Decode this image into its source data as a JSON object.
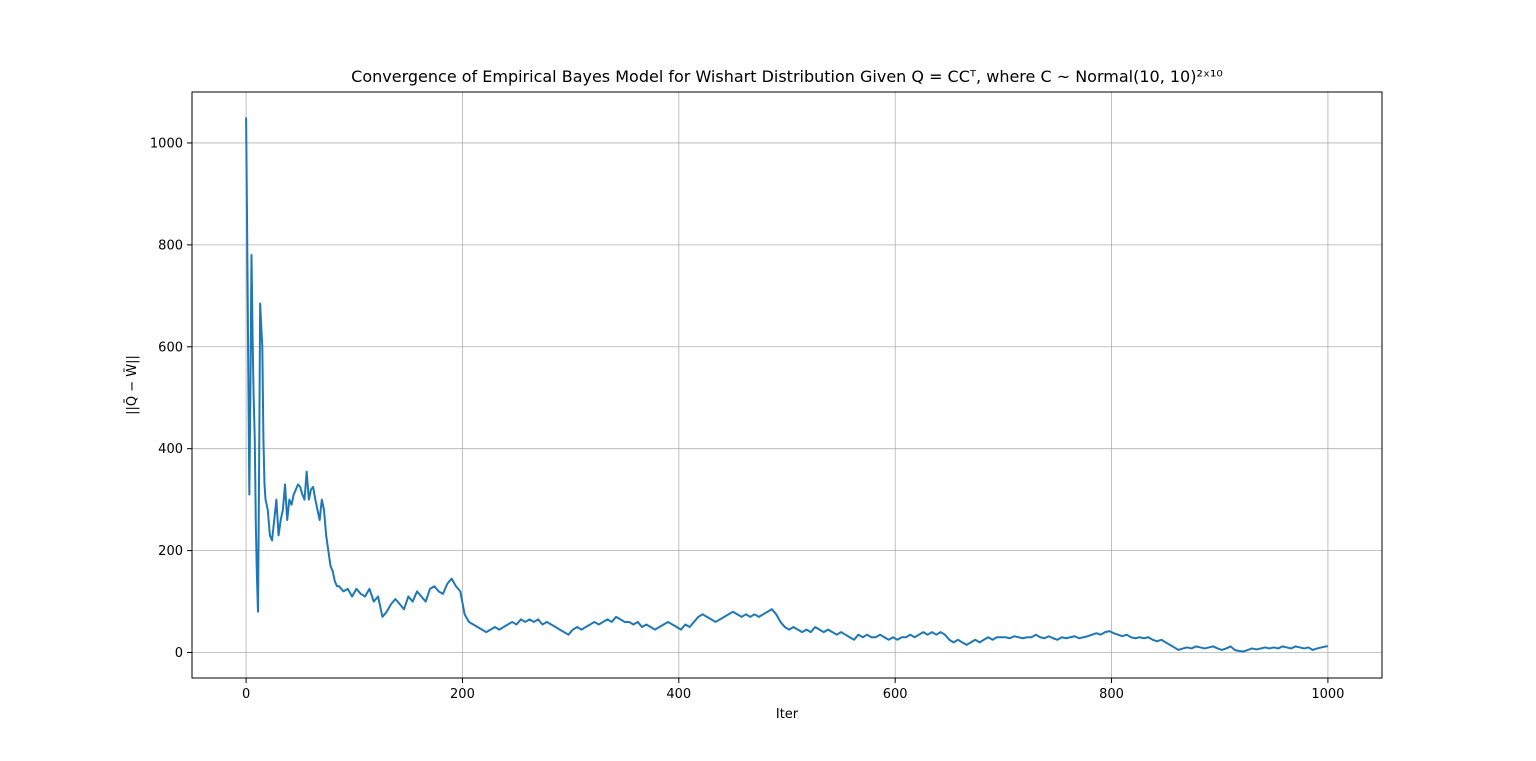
{
  "chart_data": {
    "type": "line",
    "title": "Convergence of Empirical Bayes Model for Wishart Distribution Given Q = CCᵀ, where C ~ Normal(10, 10)²ˣ¹⁰",
    "xlabel": "Iter",
    "ylabel": "||Q̄ − W̄||",
    "xlim": [
      -50,
      1050
    ],
    "ylim": [
      -50,
      1100
    ],
    "x_ticks": [
      0,
      200,
      400,
      600,
      800,
      1000
    ],
    "y_ticks": [
      0,
      200,
      400,
      600,
      800,
      1000
    ],
    "grid": true,
    "line_color": "#1f77b4",
    "series": [
      {
        "points": [
          [
            0,
            1050
          ],
          [
            1,
            820
          ],
          [
            2,
            560
          ],
          [
            3,
            310
          ],
          [
            4,
            520
          ],
          [
            5,
            780
          ],
          [
            6,
            620
          ],
          [
            7,
            500
          ],
          [
            8,
            420
          ],
          [
            9,
            250
          ],
          [
            10,
            150
          ],
          [
            11,
            80
          ],
          [
            12,
            350
          ],
          [
            13,
            685
          ],
          [
            14,
            640
          ],
          [
            15,
            600
          ],
          [
            16,
            420
          ],
          [
            17,
            330
          ],
          [
            18,
            300
          ],
          [
            20,
            280
          ],
          [
            22,
            230
          ],
          [
            24,
            220
          ],
          [
            26,
            260
          ],
          [
            28,
            300
          ],
          [
            30,
            230
          ],
          [
            32,
            260
          ],
          [
            34,
            280
          ],
          [
            36,
            330
          ],
          [
            38,
            260
          ],
          [
            40,
            300
          ],
          [
            42,
            290
          ],
          [
            44,
            310
          ],
          [
            46,
            320
          ],
          [
            48,
            330
          ],
          [
            50,
            325
          ],
          [
            52,
            310
          ],
          [
            54,
            300
          ],
          [
            56,
            355
          ],
          [
            58,
            300
          ],
          [
            60,
            320
          ],
          [
            62,
            325
          ],
          [
            64,
            300
          ],
          [
            66,
            280
          ],
          [
            68,
            260
          ],
          [
            70,
            300
          ],
          [
            72,
            280
          ],
          [
            74,
            230
          ],
          [
            76,
            200
          ],
          [
            78,
            170
          ],
          [
            80,
            160
          ],
          [
            82,
            140
          ],
          [
            84,
            130
          ],
          [
            86,
            130
          ],
          [
            90,
            120
          ],
          [
            94,
            125
          ],
          [
            98,
            110
          ],
          [
            102,
            125
          ],
          [
            106,
            115
          ],
          [
            110,
            110
          ],
          [
            114,
            125
          ],
          [
            118,
            100
          ],
          [
            122,
            110
          ],
          [
            126,
            70
          ],
          [
            130,
            80
          ],
          [
            134,
            95
          ],
          [
            138,
            105
          ],
          [
            142,
            95
          ],
          [
            146,
            85
          ],
          [
            150,
            110
          ],
          [
            154,
            100
          ],
          [
            158,
            120
          ],
          [
            162,
            110
          ],
          [
            166,
            100
          ],
          [
            170,
            125
          ],
          [
            174,
            130
          ],
          [
            178,
            120
          ],
          [
            182,
            115
          ],
          [
            186,
            135
          ],
          [
            190,
            145
          ],
          [
            194,
            130
          ],
          [
            198,
            120
          ],
          [
            202,
            75
          ],
          [
            206,
            60
          ],
          [
            210,
            55
          ],
          [
            214,
            50
          ],
          [
            218,
            45
          ],
          [
            222,
            40
          ],
          [
            226,
            45
          ],
          [
            230,
            50
          ],
          [
            234,
            45
          ],
          [
            238,
            50
          ],
          [
            242,
            55
          ],
          [
            246,
            60
          ],
          [
            250,
            55
          ],
          [
            254,
            65
          ],
          [
            258,
            60
          ],
          [
            262,
            65
          ],
          [
            266,
            60
          ],
          [
            270,
            65
          ],
          [
            274,
            55
          ],
          [
            278,
            60
          ],
          [
            282,
            55
          ],
          [
            286,
            50
          ],
          [
            290,
            45
          ],
          [
            294,
            40
          ],
          [
            298,
            35
          ],
          [
            302,
            45
          ],
          [
            306,
            50
          ],
          [
            310,
            45
          ],
          [
            314,
            50
          ],
          [
            318,
            55
          ],
          [
            322,
            60
          ],
          [
            326,
            55
          ],
          [
            330,
            60
          ],
          [
            334,
            65
          ],
          [
            338,
            60
          ],
          [
            342,
            70
          ],
          [
            346,
            65
          ],
          [
            350,
            60
          ],
          [
            354,
            60
          ],
          [
            358,
            55
          ],
          [
            362,
            60
          ],
          [
            366,
            50
          ],
          [
            370,
            55
          ],
          [
            374,
            50
          ],
          [
            378,
            45
          ],
          [
            382,
            50
          ],
          [
            386,
            55
          ],
          [
            390,
            60
          ],
          [
            394,
            55
          ],
          [
            398,
            50
          ],
          [
            402,
            45
          ],
          [
            406,
            55
          ],
          [
            410,
            50
          ],
          [
            414,
            60
          ],
          [
            418,
            70
          ],
          [
            422,
            75
          ],
          [
            426,
            70
          ],
          [
            430,
            65
          ],
          [
            434,
            60
          ],
          [
            438,
            65
          ],
          [
            442,
            70
          ],
          [
            446,
            75
          ],
          [
            450,
            80
          ],
          [
            454,
            75
          ],
          [
            458,
            70
          ],
          [
            462,
            75
          ],
          [
            466,
            70
          ],
          [
            470,
            75
          ],
          [
            474,
            70
          ],
          [
            478,
            75
          ],
          [
            482,
            80
          ],
          [
            486,
            85
          ],
          [
            490,
            75
          ],
          [
            494,
            60
          ],
          [
            498,
            50
          ],
          [
            502,
            45
          ],
          [
            506,
            50
          ],
          [
            510,
            45
          ],
          [
            514,
            40
          ],
          [
            518,
            45
          ],
          [
            522,
            40
          ],
          [
            526,
            50
          ],
          [
            530,
            45
          ],
          [
            534,
            40
          ],
          [
            538,
            45
          ],
          [
            542,
            40
          ],
          [
            546,
            35
          ],
          [
            550,
            40
          ],
          [
            554,
            35
          ],
          [
            558,
            30
          ],
          [
            562,
            25
          ],
          [
            566,
            35
          ],
          [
            570,
            30
          ],
          [
            574,
            35
          ],
          [
            578,
            30
          ],
          [
            582,
            30
          ],
          [
            586,
            35
          ],
          [
            590,
            30
          ],
          [
            594,
            25
          ],
          [
            598,
            30
          ],
          [
            602,
            25
          ],
          [
            606,
            30
          ],
          [
            610,
            30
          ],
          [
            614,
            35
          ],
          [
            618,
            30
          ],
          [
            622,
            35
          ],
          [
            626,
            40
          ],
          [
            630,
            35
          ],
          [
            634,
            40
          ],
          [
            638,
            35
          ],
          [
            642,
            40
          ],
          [
            646,
            35
          ],
          [
            650,
            25
          ],
          [
            654,
            20
          ],
          [
            658,
            25
          ],
          [
            662,
            20
          ],
          [
            666,
            15
          ],
          [
            670,
            20
          ],
          [
            674,
            25
          ],
          [
            678,
            20
          ],
          [
            682,
            25
          ],
          [
            686,
            30
          ],
          [
            690,
            25
          ],
          [
            694,
            30
          ],
          [
            698,
            30
          ],
          [
            702,
            30
          ],
          [
            706,
            28
          ],
          [
            710,
            32
          ],
          [
            714,
            30
          ],
          [
            718,
            28
          ],
          [
            722,
            30
          ],
          [
            726,
            30
          ],
          [
            730,
            35
          ],
          [
            734,
            30
          ],
          [
            738,
            28
          ],
          [
            742,
            32
          ],
          [
            746,
            28
          ],
          [
            750,
            25
          ],
          [
            754,
            30
          ],
          [
            758,
            28
          ],
          [
            762,
            30
          ],
          [
            766,
            32
          ],
          [
            770,
            28
          ],
          [
            774,
            30
          ],
          [
            778,
            32
          ],
          [
            782,
            35
          ],
          [
            786,
            38
          ],
          [
            790,
            35
          ],
          [
            794,
            40
          ],
          [
            798,
            42
          ],
          [
            802,
            38
          ],
          [
            806,
            35
          ],
          [
            810,
            32
          ],
          [
            814,
            35
          ],
          [
            818,
            30
          ],
          [
            822,
            28
          ],
          [
            826,
            30
          ],
          [
            830,
            28
          ],
          [
            834,
            30
          ],
          [
            838,
            25
          ],
          [
            842,
            22
          ],
          [
            846,
            25
          ],
          [
            850,
            20
          ],
          [
            854,
            15
          ],
          [
            858,
            10
          ],
          [
            862,
            5
          ],
          [
            866,
            8
          ],
          [
            870,
            10
          ],
          [
            874,
            8
          ],
          [
            878,
            12
          ],
          [
            882,
            10
          ],
          [
            886,
            8
          ],
          [
            890,
            10
          ],
          [
            894,
            12
          ],
          [
            898,
            8
          ],
          [
            902,
            5
          ],
          [
            906,
            8
          ],
          [
            910,
            12
          ],
          [
            914,
            5
          ],
          [
            918,
            3
          ],
          [
            922,
            2
          ],
          [
            926,
            5
          ],
          [
            930,
            8
          ],
          [
            934,
            6
          ],
          [
            938,
            8
          ],
          [
            942,
            10
          ],
          [
            946,
            8
          ],
          [
            950,
            10
          ],
          [
            954,
            8
          ],
          [
            958,
            12
          ],
          [
            962,
            10
          ],
          [
            966,
            8
          ],
          [
            970,
            12
          ],
          [
            974,
            10
          ],
          [
            978,
            8
          ],
          [
            982,
            10
          ],
          [
            986,
            5
          ],
          [
            990,
            8
          ],
          [
            994,
            10
          ],
          [
            998,
            12
          ],
          [
            1000,
            12
          ]
        ]
      }
    ]
  }
}
